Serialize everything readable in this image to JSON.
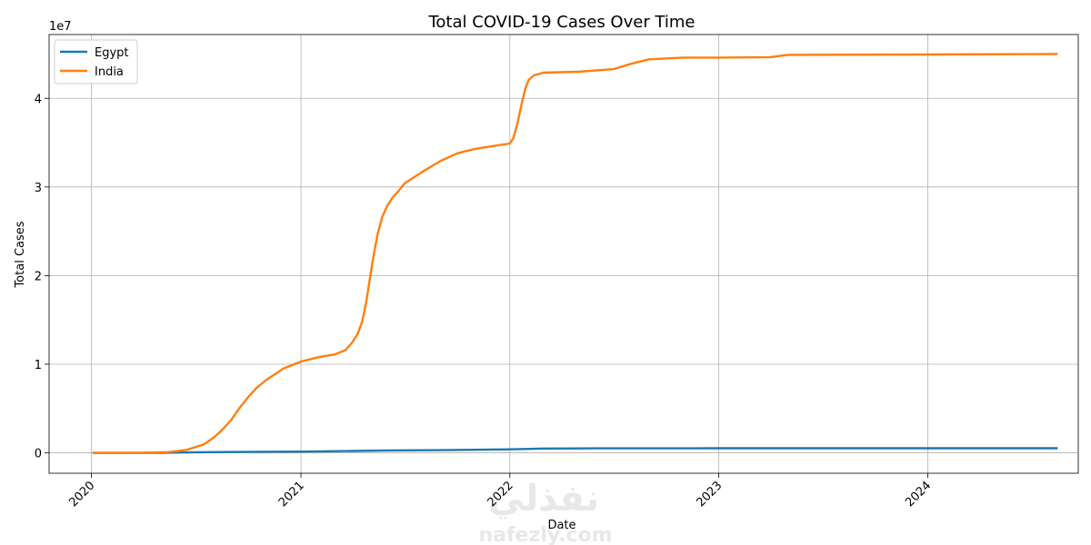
{
  "chart_data": {
    "type": "line",
    "title": "Total COVID-19 Cases Over Time",
    "xlabel": "Date",
    "ylabel": "Total Cases",
    "y_offset_text": "1e7",
    "x_ticks": [
      "2020",
      "2021",
      "2022",
      "2023",
      "2024"
    ],
    "y_ticks": [
      "0",
      "1",
      "2",
      "3",
      "4"
    ],
    "xlim": [
      "2019-10-19",
      "2024-09-20"
    ],
    "ylim": [
      -2300000,
      47200000
    ],
    "grid": true,
    "legend_position": "top-left",
    "series": [
      {
        "name": "Egypt",
        "color": "#1f77b4",
        "points": [
          [
            "2020-01-03",
            0
          ],
          [
            "2020-03-01",
            0
          ],
          [
            "2020-05-01",
            5500
          ],
          [
            "2020-07-01",
            70000
          ],
          [
            "2020-09-01",
            100000
          ],
          [
            "2021-01-01",
            140000
          ],
          [
            "2021-04-01",
            210000
          ],
          [
            "2021-06-01",
            275000
          ],
          [
            "2021-09-01",
            300000
          ],
          [
            "2022-01-01",
            400000
          ],
          [
            "2022-03-01",
            490000
          ],
          [
            "2022-06-01",
            505000
          ],
          [
            "2023-01-01",
            515000
          ],
          [
            "2024-08-15",
            516000
          ]
        ]
      },
      {
        "name": "India",
        "color": "#ff7f0e",
        "points": [
          [
            "2020-01-03",
            0
          ],
          [
            "2020-04-01",
            2000
          ],
          [
            "2020-05-15",
            90000
          ],
          [
            "2020-06-15",
            330000
          ],
          [
            "2020-07-15",
            940000
          ],
          [
            "2020-08-01",
            1700000
          ],
          [
            "2020-08-15",
            2500000
          ],
          [
            "2020-09-01",
            3700000
          ],
          [
            "2020-09-15",
            5000000
          ],
          [
            "2020-10-01",
            6300000
          ],
          [
            "2020-10-15",
            7300000
          ],
          [
            "2020-11-01",
            8200000
          ],
          [
            "2020-12-01",
            9500000
          ],
          [
            "2021-01-01",
            10300000
          ],
          [
            "2021-02-01",
            10800000
          ],
          [
            "2021-03-01",
            11100000
          ],
          [
            "2021-03-20",
            11600000
          ],
          [
            "2021-04-01",
            12500000
          ],
          [
            "2021-04-10",
            13400000
          ],
          [
            "2021-04-18",
            14800000
          ],
          [
            "2021-04-25",
            17000000
          ],
          [
            "2021-05-01",
            19500000
          ],
          [
            "2021-05-08",
            22300000
          ],
          [
            "2021-05-15",
            24700000
          ],
          [
            "2021-05-23",
            26600000
          ],
          [
            "2021-06-01",
            27900000
          ],
          [
            "2021-06-10",
            28800000
          ],
          [
            "2021-06-20",
            29500000
          ],
          [
            "2021-07-01",
            30400000
          ],
          [
            "2021-08-01",
            31700000
          ],
          [
            "2021-09-01",
            32900000
          ],
          [
            "2021-10-01",
            33800000
          ],
          [
            "2021-11-01",
            34300000
          ],
          [
            "2021-12-01",
            34600000
          ],
          [
            "2022-01-01",
            34900000
          ],
          [
            "2022-01-07",
            35500000
          ],
          [
            "2022-01-14",
            37100000
          ],
          [
            "2022-01-21",
            39200000
          ],
          [
            "2022-01-28",
            41100000
          ],
          [
            "2022-02-03",
            42100000
          ],
          [
            "2022-02-12",
            42600000
          ],
          [
            "2022-03-01",
            42900000
          ],
          [
            "2022-05-01",
            43000000
          ],
          [
            "2022-07-01",
            43300000
          ],
          [
            "2022-08-01",
            43900000
          ],
          [
            "2022-09-01",
            44400000
          ],
          [
            "2022-11-01",
            44600000
          ],
          [
            "2023-01-01",
            44600000
          ],
          [
            "2023-04-01",
            44650000
          ],
          [
            "2023-05-01",
            44900000
          ],
          [
            "2024-01-01",
            44950000
          ],
          [
            "2024-08-15",
            45000000
          ]
        ]
      }
    ]
  },
  "watermark": {
    "text": "نفذلي",
    "subtext": "nafezly.com"
  }
}
